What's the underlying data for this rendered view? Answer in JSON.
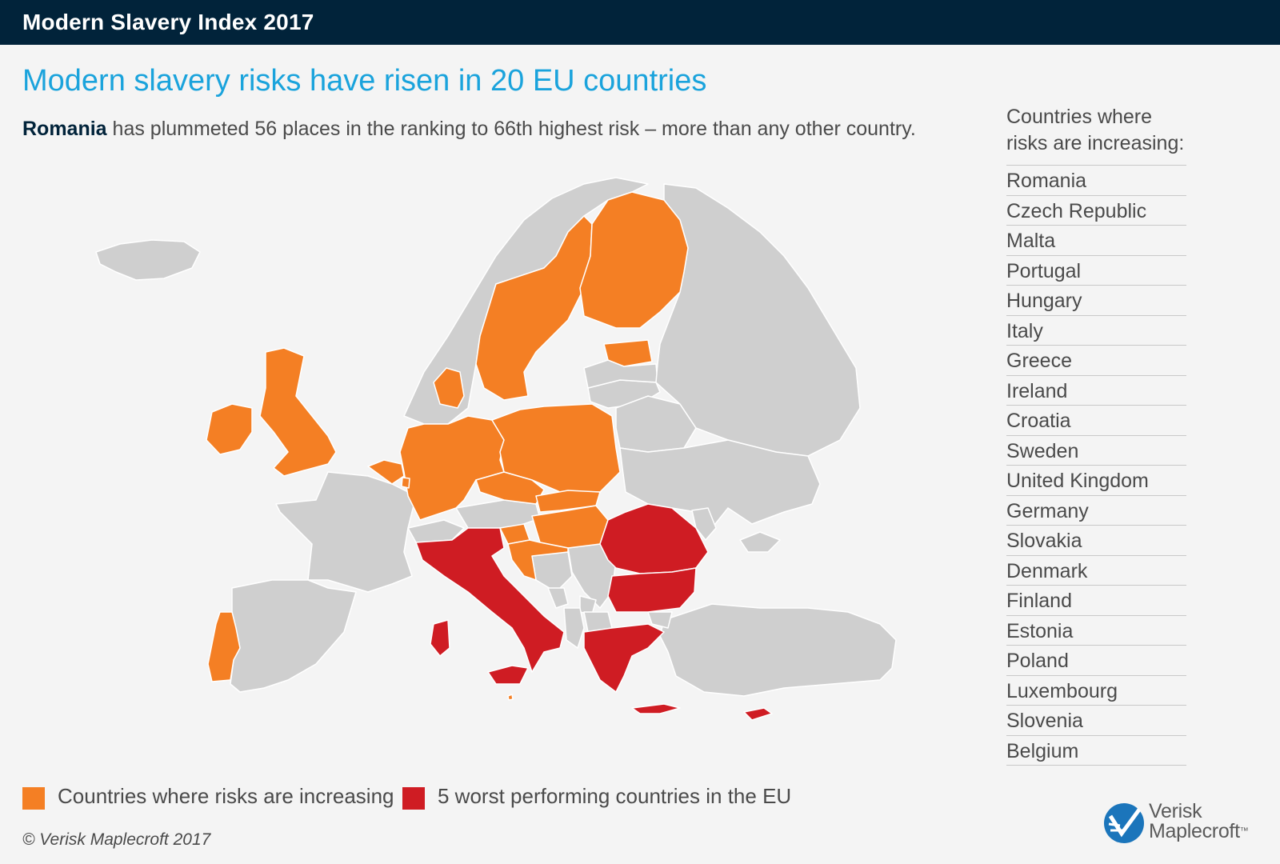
{
  "header": {
    "title": "Modern Slavery Index 2017"
  },
  "headline": "Modern slavery risks have risen in 20 EU countries",
  "subhead": {
    "bold": "Romania",
    "text": " has plummeted 56 places in the ranking to 66th highest risk – more than any other country."
  },
  "sidebar": {
    "heading_line1": "Countries where",
    "heading_line2": "risks are increasing:",
    "countries": [
      "Romania",
      "Czech Republic",
      "Malta",
      "Portugal",
      "Hungary",
      "Italy",
      "Greece",
      "Ireland",
      "Croatia",
      "Sweden",
      "United Kingdom",
      "Germany",
      "Slovakia",
      "Denmark",
      "Finland",
      "Estonia",
      "Poland",
      "Luxembourg",
      "Slovenia",
      "Belgium"
    ]
  },
  "legend": {
    "increasing": {
      "label": "Countries where risks are increasing",
      "color": "#f47f24"
    },
    "worst": {
      "label": "5 worst performing countries in the EU",
      "color": "#cf1c23"
    }
  },
  "map_colors": {
    "other": "#cfcfcf",
    "border": "#ffffff"
  },
  "map_categories": {
    "worst": [
      "Romania",
      "Italy",
      "Greece",
      "Bulgaria",
      "Cyprus"
    ],
    "increasing": [
      "Czech Republic",
      "Malta",
      "Portugal",
      "Hungary",
      "Ireland",
      "Croatia",
      "Sweden",
      "United Kingdom",
      "Germany",
      "Slovakia",
      "Denmark",
      "Finland",
      "Estonia",
      "Poland",
      "Luxembourg",
      "Slovenia",
      "Belgium"
    ]
  },
  "footer": "© Verisk Maplecroft 2017",
  "brand": {
    "line1": "Verisk",
    "line2": "Maplecroft",
    "tm": "™",
    "color": "#1b75bb"
  }
}
